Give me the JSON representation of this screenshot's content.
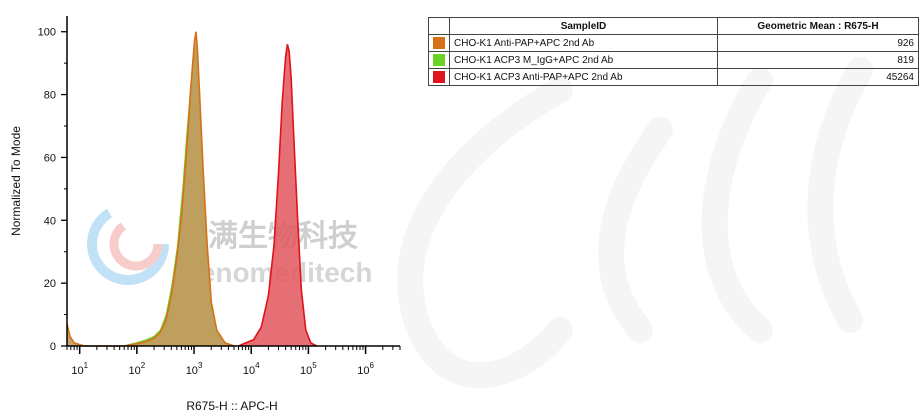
{
  "chart_data": {
    "type": "area",
    "title": "",
    "xlabel": "R675-H :: APC-H",
    "ylabel": "Normalized To Mode",
    "x_scale": "log",
    "xlim": [
      6,
      4000000
    ],
    "ylim": [
      0,
      105
    ],
    "x_ticks": [
      10,
      100,
      1000,
      10000,
      100000,
      1000000
    ],
    "x_tick_labels": [
      {
        "base": "10",
        "exp": "1"
      },
      {
        "base": "10",
        "exp": "2"
      },
      {
        "base": "10",
        "exp": "3"
      },
      {
        "base": "10",
        "exp": "4"
      },
      {
        "base": "10",
        "exp": "5"
      },
      {
        "base": "10",
        "exp": "6"
      }
    ],
    "y_ticks": [
      0,
      20,
      40,
      60,
      80,
      100
    ],
    "y_tick_labels": [
      "0",
      "20",
      "40",
      "60",
      "80",
      "100"
    ],
    "grid": false,
    "series": [
      {
        "name": "CHO-K1 ACP3 Anti-PAP+APC 2nd Ab",
        "color": "#e0121b",
        "fill": "#e35b62",
        "points": [
          [
            6000,
            0
          ],
          [
            8000,
            1
          ],
          [
            11000,
            2
          ],
          [
            15000,
            6
          ],
          [
            20000,
            16
          ],
          [
            25000,
            32
          ],
          [
            30000,
            55
          ],
          [
            35000,
            78
          ],
          [
            40000,
            92
          ],
          [
            43000,
            96
          ],
          [
            46000,
            94
          ],
          [
            50000,
            85
          ],
          [
            56000,
            65
          ],
          [
            65000,
            40
          ],
          [
            75000,
            18
          ],
          [
            90000,
            5
          ],
          [
            110000,
            1
          ],
          [
            140000,
            0
          ]
        ]
      },
      {
        "name": "CHO-K1 ACP3 M_IgG+APC 2nd Ab",
        "color": "#6ed128",
        "fill": "#98c470",
        "points": [
          [
            60,
            0
          ],
          [
            100,
            1
          ],
          [
            150,
            2
          ],
          [
            200,
            3
          ],
          [
            260,
            5
          ],
          [
            330,
            10
          ],
          [
            420,
            20
          ],
          [
            520,
            32
          ],
          [
            640,
            50
          ],
          [
            760,
            68
          ],
          [
            880,
            82
          ],
          [
            950,
            90
          ],
          [
            1000,
            94
          ],
          [
            1060,
            95
          ],
          [
            1120,
            90
          ],
          [
            1250,
            75
          ],
          [
            1450,
            50
          ],
          [
            1700,
            28
          ],
          [
            2000,
            12
          ],
          [
            2500,
            4
          ],
          [
            3500,
            1
          ],
          [
            5000,
            0
          ]
        ]
      },
      {
        "name": "CHO-K1 Anti-PAP+APC 2nd Ab",
        "color": "#d87018",
        "fill": "#c39a5a",
        "points": [
          [
            6,
            7
          ],
          [
            6.8,
            3
          ],
          [
            8,
            1
          ],
          [
            12,
            0
          ],
          [
            60,
            0
          ],
          [
            120,
            1
          ],
          [
            180,
            2
          ],
          [
            250,
            4
          ],
          [
            320,
            8
          ],
          [
            400,
            16
          ],
          [
            500,
            28
          ],
          [
            620,
            44
          ],
          [
            740,
            62
          ],
          [
            860,
            80
          ],
          [
            950,
            90
          ],
          [
            1020,
            97
          ],
          [
            1080,
            100
          ],
          [
            1150,
            94
          ],
          [
            1250,
            80
          ],
          [
            1450,
            55
          ],
          [
            1700,
            32
          ],
          [
            2000,
            14
          ],
          [
            2500,
            5
          ],
          [
            3500,
            1
          ],
          [
            5000,
            0
          ]
        ]
      }
    ]
  },
  "legend_table": {
    "headers": [
      "",
      "SampleID",
      "Geometric Mean : R675-H"
    ],
    "rows": [
      {
        "color": "#d87018",
        "sample": "CHO-K1 Anti-PAP+APC 2nd Ab",
        "value": "926"
      },
      {
        "color": "#6ed128",
        "sample": "CHO-K1 ACP3 M_IgG+APC 2nd Ab",
        "value": "819"
      },
      {
        "color": "#e0121b",
        "sample": "CHO-K1 ACP3 Anti-PAP+APC 2nd Ab",
        "value": "45264"
      }
    ]
  },
  "watermark": {
    "chinese": "吉满生物科技",
    "latin": "Genomeditech"
  }
}
